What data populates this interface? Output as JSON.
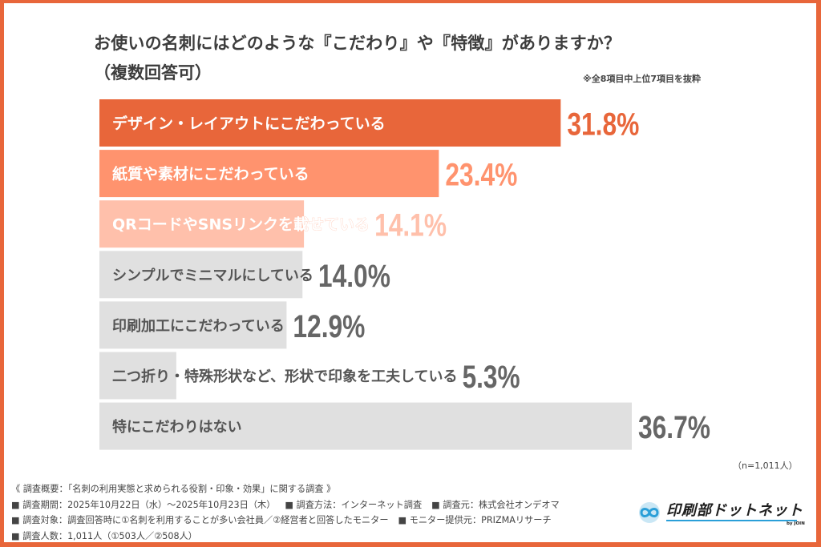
{
  "header": {
    "title": "お使いの名刺にはどのような『こだわり』や『特徴』がありますか？",
    "subtitle": "（複数回答可）",
    "note": "※全8項目中上位7項目を抜粋"
  },
  "chart_data": {
    "type": "bar",
    "orientation": "horizontal",
    "title": "お使いの名刺にはどのような『こだわり』や『特徴』がありますか？（複数回答可）",
    "unit": "%",
    "categories": [
      "デザイン・レイアウトにこだわっている",
      "紙質や素材にこだわっている",
      "QRコードやSNSリンクを載せている",
      "シンプルでミニマルにしている",
      "印刷加工にこだわっている",
      "二つ折り・特殊形状など、形状で印象を工夫している",
      "特にこだわりはない"
    ],
    "values": [
      31.8,
      23.4,
      14.1,
      14.0,
      12.9,
      5.3,
      36.7
    ],
    "value_labels": [
      "31.8%",
      "23.4%",
      "14.1%",
      "14.0%",
      "12.9%",
      "5.3%",
      "36.7%"
    ],
    "bar_colors": [
      "#E8663A",
      "#FF936E",
      "#FFC0AB",
      "#E0E0E0",
      "#E0E0E0",
      "#E0E0E0",
      "#E0E0E0"
    ],
    "label_colors": [
      "#E8663A",
      "#FF936E",
      "#FFC0AB",
      "#666666",
      "#666666",
      "#666666",
      "#666666"
    ],
    "text_colors": [
      "#ffffff",
      "#ffffff",
      "#ffffff",
      "#555555",
      "#555555",
      "#555555",
      "#555555"
    ],
    "xlim": [
      0,
      36.7
    ],
    "n_label": "（n=1,011人）"
  },
  "footer": {
    "summary": "《 調査概要：「名刺の利用実態と求められる役割・印象・効果」に関する調査 》",
    "rows": [
      [
        "■ 調査期間：2025年10月22日（水）～2025年10月23日（木）",
        "■ 調査方法：インターネット調査",
        "■ 調査元：株式会社オンデオマ"
      ],
      [
        "■ 調査対象：調査回答時に①名刺を利用することが多い会社員／②経営者と回答したモニター",
        "■ モニター提供元：PRIZMAリサーチ"
      ],
      [
        "■ 調査人数：1,011人（①503人／②508人）"
      ]
    ]
  },
  "logo": {
    "text": "印刷部ドットネット",
    "by": "by JOIN",
    "accent": "#2A9FD8"
  }
}
